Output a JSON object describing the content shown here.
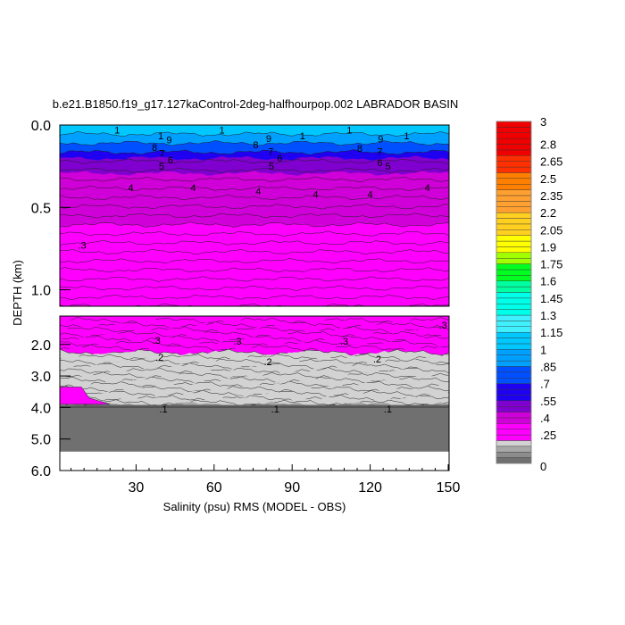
{
  "chart_data": {
    "type": "contour",
    "title": "b.e21.B1850.f19_g17.127kaControl-2deg-halfhourpop.002 LABRADOR BASIN",
    "xlabel": "Salinity (psu) RMS (MODEL - OBS)",
    "ylabel": "DEPTH (km)",
    "xlim": [
      0,
      150
    ],
    "x_ticks": [
      "30",
      "60",
      "90",
      "120",
      "150"
    ],
    "x_tick_values": [
      30,
      60,
      90,
      120,
      150
    ],
    "upper_panel": {
      "ylim": [
        0,
        1.1
      ],
      "y_ticks": [
        "0.0",
        "0.5",
        "1.0"
      ],
      "y_tick_values": [
        0,
        0.5,
        1.0
      ]
    },
    "lower_panel": {
      "ylim": [
        1.1,
        6.0
      ],
      "y_ticks": [
        "2.0",
        "3.0",
        "4.0",
        "5.0",
        "6.0"
      ],
      "y_tick_values": [
        2,
        3,
        4,
        5,
        6
      ]
    },
    "depth_profile": [
      {
        "depth": 0.0,
        "value": 1.1
      },
      {
        "depth": 0.05,
        "value": 1.0
      },
      {
        "depth": 0.1,
        "value": 0.85
      },
      {
        "depth": 0.15,
        "value": 0.7
      },
      {
        "depth": 0.2,
        "value": 0.55
      },
      {
        "depth": 0.28,
        "value": 0.45
      },
      {
        "depth": 0.4,
        "value": 0.38
      },
      {
        "depth": 0.6,
        "value": 0.35
      },
      {
        "depth": 1.1,
        "value": 0.33
      },
      {
        "depth": 1.9,
        "value": 0.3
      },
      {
        "depth": 2.1,
        "value": 0.25
      },
      {
        "depth": 2.3,
        "value": 0.18
      },
      {
        "depth": 3.9,
        "value": 0.15
      },
      {
        "depth": 4.0,
        "value": 0.03
      },
      {
        "depth": 5.4,
        "value": 0.03
      }
    ],
    "contour_labels": [
      {
        "text": "1",
        "x": 22.7,
        "depth": 0.03
      },
      {
        "text": "1",
        "x": 63,
        "depth": 0.03
      },
      {
        "text": "1",
        "x": 112,
        "depth": 0.03
      },
      {
        "text": "1",
        "x": 94,
        "depth": 0.065
      },
      {
        "text": "1",
        "x": 134,
        "depth": 0.065
      },
      {
        "text": "1",
        "x": 39.5,
        "depth": 0.065
      },
      {
        "text": "9",
        "x": 41,
        "depth": 0.09
      },
      {
        "text": "9",
        "x": 81,
        "depth": 0.08
      },
      {
        "text": "9",
        "x": 124,
        "depth": 0.085
      },
      {
        "text": "8",
        "x": 38.8,
        "depth": 0.12
      },
      {
        "text": "8",
        "x": 76,
        "depth": 0.12
      },
      {
        "text": "8",
        "x": 116,
        "depth": 0.14
      },
      {
        "text": "7",
        "x": 40,
        "depth": 0.17
      },
      {
        "text": "7",
        "x": 81.8,
        "depth": 0.16
      },
      {
        "text": "7",
        "x": 123.7,
        "depth": 0.16
      },
      {
        "text": "6",
        "x": 39.8,
        "depth": 0.21
      },
      {
        "text": "6",
        "x": 81.8,
        "depth": 0.2
      },
      {
        "text": "6",
        "x": 123.7,
        "depth": 0.205
      },
      {
        "text": "5",
        "x": 39.8,
        "depth": 0.25
      },
      {
        "text": "5",
        "x": 82,
        "depth": 0.25
      },
      {
        "text": "5",
        "x": 123.4,
        "depth": 0.25
      },
      {
        "text": "4",
        "x": 28,
        "depth": 0.38
      },
      {
        "text": "4",
        "x": 52,
        "depth": 0.38
      },
      {
        "text": "4",
        "x": 77,
        "depth": 0.4
      },
      {
        "text": "4",
        "x": 99,
        "depth": 0.42
      },
      {
        "text": "4",
        "x": 120,
        "depth": 0.42
      },
      {
        "text": "4",
        "x": 142,
        "depth": 0.38
      },
      {
        "text": ".3",
        "x": 9.3,
        "depth": 0.73
      },
      {
        "text": ".3",
        "x": 37.8,
        "depth": 1.86
      },
      {
        "text": ".3",
        "x": 69,
        "depth": 1.89
      },
      {
        "text": ".3",
        "x": 110,
        "depth": 1.89
      },
      {
        "text": ".3",
        "x": 148,
        "depth": 1.38
      },
      {
        "text": ".2",
        "x": 39,
        "depth": 2.4
      },
      {
        "text": ".2",
        "x": 80.7,
        "depth": 2.55
      },
      {
        "text": ".2",
        "x": 122.7,
        "depth": 2.46
      },
      {
        "text": ".1",
        "x": 40.5,
        "depth": 4.05
      },
      {
        "text": ".1",
        "x": 83.5,
        "depth": 4.05
      },
      {
        "text": ".1",
        "x": 126.8,
        "depth": 4.05
      }
    ],
    "colorbar": {
      "min": 0,
      "max": 3,
      "interval": 0.05,
      "labels": [
        "3",
        "2.8",
        "2.65",
        "2.5",
        "2.35",
        "2.2",
        "2.05",
        "1.9",
        "1.75",
        "1.6",
        "1.45",
        "1.3",
        "1.15",
        "1",
        ".85",
        ".7",
        ".55",
        ".4",
        ".25",
        "0"
      ],
      "label_values": [
        3,
        2.8,
        2.65,
        2.5,
        2.35,
        2.2,
        2.05,
        1.9,
        1.75,
        1.6,
        1.45,
        1.3,
        1.15,
        1,
        0.85,
        0.7,
        0.55,
        0.4,
        0.25,
        0
      ],
      "stops": [
        {
          "v": 0.0,
          "c": "#707070"
        },
        {
          "v": 0.05,
          "c": "#8c8c8c"
        },
        {
          "v": 0.1,
          "c": "#a8a8a8"
        },
        {
          "v": 0.15,
          "c": "#d2d2d2"
        },
        {
          "v": 0.2,
          "c": "#ff00ff"
        },
        {
          "v": 0.35,
          "c": "#d000d8"
        },
        {
          "v": 0.45,
          "c": "#8000d0"
        },
        {
          "v": 0.55,
          "c": "#2000f0"
        },
        {
          "v": 0.7,
          "c": "#0050ff"
        },
        {
          "v": 0.85,
          "c": "#00a0ff"
        },
        {
          "v": 1.0,
          "c": "#00c8ff"
        },
        {
          "v": 1.15,
          "c": "#40f0ff"
        },
        {
          "v": 1.3,
          "c": "#00ffe8"
        },
        {
          "v": 1.5,
          "c": "#00ffa0"
        },
        {
          "v": 1.6,
          "c": "#00ff20"
        },
        {
          "v": 1.75,
          "c": "#a0ff00"
        },
        {
          "v": 1.85,
          "c": "#ffff00"
        },
        {
          "v": 2.0,
          "c": "#ffd020"
        },
        {
          "v": 2.2,
          "c": "#ffa030"
        },
        {
          "v": 2.4,
          "c": "#ff8000"
        },
        {
          "v": 2.55,
          "c": "#ff3000"
        },
        {
          "v": 2.7,
          "c": "#f00000"
        },
        {
          "v": 3.0,
          "c": "#a00000"
        }
      ]
    }
  }
}
